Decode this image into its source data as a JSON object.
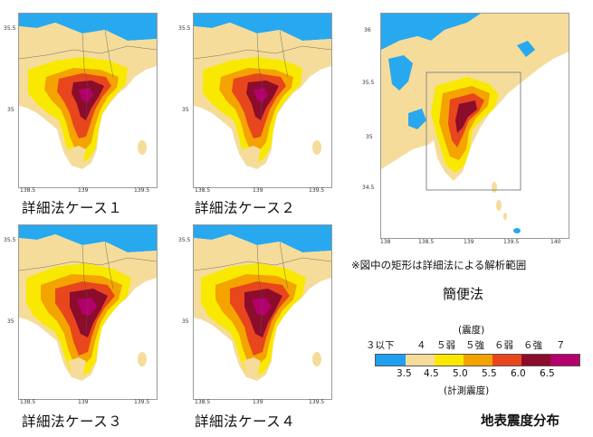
{
  "panels": {
    "case1": {
      "label": "詳細法ケース１",
      "lat_ticks": [
        "35.5",
        "35"
      ],
      "lon_ticks": [
        "138.5",
        "139",
        "139.5"
      ]
    },
    "case2": {
      "label": "詳細法ケース２",
      "lat_ticks": [
        "35.5",
        "35"
      ],
      "lon_ticks": [
        "138.5",
        "139",
        "139.5"
      ]
    },
    "case3": {
      "label": "詳細法ケース３",
      "lat_ticks": [
        "35.5",
        "35"
      ],
      "lon_ticks": [
        "138.5",
        "139",
        "139.5"
      ]
    },
    "case4": {
      "label": "詳細法ケース４",
      "lat_ticks": [
        "35.5",
        "35"
      ],
      "lon_ticks": [
        "138.5",
        "139",
        "139.5"
      ]
    },
    "simple": {
      "label": "簡便法",
      "lat_ticks": [
        "36",
        "35.5",
        "35",
        "34.5"
      ],
      "lon_ticks": [
        "138",
        "138.5",
        "139",
        "139.5",
        "140"
      ],
      "note": "※図中の矩形は詳細法による解析範囲"
    }
  },
  "legend": {
    "title": "(震度)",
    "classes": [
      "３以下",
      "４",
      "５弱",
      "５強",
      "６弱",
      "６強",
      "７"
    ],
    "colors": [
      "#1e9ff0",
      "#f5dc9a",
      "#f9e900",
      "#f4a300",
      "#e8461c",
      "#8c0c2c",
      "#b4006c"
    ],
    "thresholds": [
      "3.5",
      "4.5",
      "5.0",
      "5.5",
      "6.0",
      "6.5"
    ],
    "subtitle": "(計測震度)"
  },
  "figure_title": "地表震度分布",
  "colors": {
    "sea": "#28a8ef",
    "land_base": "#f5dc9a",
    "intensity_yellow": "#f9e900",
    "intensity_orange": "#f4a300",
    "intensity_redorange": "#e8461c",
    "intensity_darkred": "#8c0c2c",
    "intensity_magenta": "#b4006c"
  }
}
